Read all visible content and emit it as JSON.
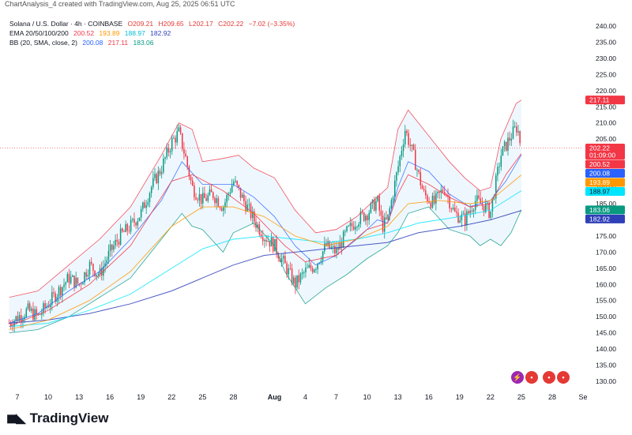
{
  "header": {
    "caption": "ChartAnalysis_4 created with TradingView.com, Aug 25, 2025 06:51 UTC"
  },
  "legend": {
    "symbol": "Solana / U.S. Dollar · 4h · COINBASE",
    "ohlc": {
      "o": "O209.21",
      "h": "H209.65",
      "l": "L202.17",
      "c": "C202.22",
      "chg": "−7.02 (−3.35%)"
    },
    "ema_label": "EMA 20/50/100/200",
    "ema_values": [
      "200.52",
      "193.89",
      "188.97",
      "182.92"
    ],
    "bb_label": "BB (20, SMA, close, 2)",
    "bb_values": [
      "200.08",
      "217.11",
      "183.06"
    ]
  },
  "footer": {
    "logo_text": "TradingView"
  },
  "colors": {
    "up": "#089981",
    "down": "#f23645",
    "ema20": "#f23645",
    "ema50": "#ff9800",
    "ema100": "#00e5ff",
    "ema200": "#2e3fb8",
    "bb_basis": "#2962ff",
    "bb_upper": "#f23645",
    "bb_lower": "#089981",
    "bb_fill": "#e3f2fd"
  },
  "chart_data": {
    "type": "candlestick",
    "title": "Solana / U.S. Dollar · 4h · COINBASE",
    "y_range": [
      128,
      243
    ],
    "y_ticks": [
      "240.00",
      "235.00",
      "230.00",
      "225.00",
      "220.00",
      "215.00",
      "210.00",
      "205.00",
      "200.00",
      "195.00",
      "190.00",
      "185.00",
      "180.00",
      "175.00",
      "170.00",
      "165.00",
      "160.00",
      "155.00",
      "150.00",
      "145.00",
      "140.00",
      "135.00",
      "130.00"
    ],
    "y_tick_values": [
      240,
      235,
      230,
      225,
      220,
      215,
      210,
      205,
      200,
      195,
      190,
      185,
      180,
      175,
      170,
      165,
      160,
      155,
      150,
      145,
      140,
      135,
      130
    ],
    "x_ticks": [
      "7",
      "10",
      "13",
      "16",
      "19",
      "22",
      "25",
      "28",
      "Aug",
      "4",
      "7",
      "10",
      "13",
      "16",
      "19",
      "22",
      "25",
      "28",
      "Se"
    ],
    "x_tick_days": [
      7,
      10,
      13,
      16,
      19,
      22,
      25,
      28,
      32,
      35,
      38,
      41,
      44,
      47,
      50,
      53,
      56,
      59,
      62
    ],
    "price_labels": [
      {
        "value": 217.11,
        "text": "217.11",
        "color": "#f23645"
      },
      {
        "value": 202.22,
        "text": "202.22",
        "sub": "01:09:00",
        "color": "#f23645"
      },
      {
        "value": 200.52,
        "text": "200.52",
        "color": "#f23645"
      },
      {
        "value": 200.08,
        "text": "200.08",
        "color": "#2962ff"
      },
      {
        "value": 193.89,
        "text": "193.89",
        "color": "#ff9800"
      },
      {
        "value": 188.97,
        "text": "188.97",
        "color": "#00e5ff"
      },
      {
        "value": 183.06,
        "text": "183.06",
        "color": "#089981"
      },
      {
        "value": 182.92,
        "text": "182.92",
        "color": "#2e3fb8"
      }
    ],
    "current_price": 202.22,
    "start_day": 6.2,
    "bars_per_day": 6,
    "close_path": [
      [
        6.2,
        148
      ],
      [
        8,
        152
      ],
      [
        9,
        150
      ],
      [
        11,
        158
      ],
      [
        12,
        162
      ],
      [
        13,
        160
      ],
      [
        14,
        166
      ],
      [
        15,
        163
      ],
      [
        16,
        170
      ],
      [
        17,
        175
      ],
      [
        18,
        178
      ],
      [
        19,
        182
      ],
      [
        20,
        190
      ],
      [
        21,
        196
      ],
      [
        22,
        204
      ],
      [
        22.7,
        207
      ],
      [
        23.3,
        200
      ],
      [
        24,
        190
      ],
      [
        25,
        186
      ],
      [
        26,
        188
      ],
      [
        27,
        184
      ],
      [
        28,
        192
      ],
      [
        29,
        186
      ],
      [
        30,
        180
      ],
      [
        31,
        175
      ],
      [
        32,
        172
      ],
      [
        33,
        166
      ],
      [
        34,
        160
      ],
      [
        35,
        164
      ],
      [
        36,
        166
      ],
      [
        37,
        172
      ],
      [
        38,
        170
      ],
      [
        39,
        176
      ],
      [
        40,
        180
      ],
      [
        41,
        182
      ],
      [
        42,
        186
      ],
      [
        42.5,
        178
      ],
      [
        43,
        180
      ],
      [
        44,
        196
      ],
      [
        44.7,
        208
      ],
      [
        45.5,
        200
      ],
      [
        46.5,
        188
      ],
      [
        47.5,
        185
      ],
      [
        48.5,
        190
      ],
      [
        49.5,
        182
      ],
      [
        50.5,
        180
      ],
      [
        51.5,
        186
      ],
      [
        52.5,
        184
      ],
      [
        53,
        182
      ],
      [
        54,
        200
      ],
      [
        55,
        206
      ],
      [
        55.6,
        209
      ],
      [
        56,
        202
      ]
    ],
    "ema20": [
      [
        6.2,
        147
      ],
      [
        10,
        152
      ],
      [
        14,
        160
      ],
      [
        18,
        172
      ],
      [
        22,
        192
      ],
      [
        24,
        194
      ],
      [
        27,
        189
      ],
      [
        30,
        182
      ],
      [
        33,
        172
      ],
      [
        35,
        167
      ],
      [
        38,
        169
      ],
      [
        41,
        177
      ],
      [
        43,
        179
      ],
      [
        44,
        188
      ],
      [
        45,
        194
      ],
      [
        47,
        191
      ],
      [
        49,
        187
      ],
      [
        51,
        184
      ],
      [
        53,
        185
      ],
      [
        54.5,
        194
      ],
      [
        56,
        200.5
      ]
    ],
    "ema50": [
      [
        6.2,
        146
      ],
      [
        10,
        149
      ],
      [
        14,
        155
      ],
      [
        18,
        164
      ],
      [
        22,
        178
      ],
      [
        25,
        184
      ],
      [
        28,
        184
      ],
      [
        31,
        181
      ],
      [
        34,
        175
      ],
      [
        37,
        172
      ],
      [
        40,
        174
      ],
      [
        43,
        178
      ],
      [
        45,
        185
      ],
      [
        48,
        186
      ],
      [
        51,
        185
      ],
      [
        53,
        186
      ],
      [
        56,
        193.9
      ]
    ],
    "ema100": [
      [
        6.2,
        147
      ],
      [
        10,
        148
      ],
      [
        14,
        152
      ],
      [
        18,
        157
      ],
      [
        22,
        165
      ],
      [
        25,
        171
      ],
      [
        28,
        174
      ],
      [
        31,
        175
      ],
      [
        34,
        174
      ],
      [
        37,
        173
      ],
      [
        40,
        174
      ],
      [
        43,
        176
      ],
      [
        46,
        179
      ],
      [
        50,
        181
      ],
      [
        53,
        183
      ],
      [
        56,
        189
      ]
    ],
    "ema200": [
      [
        6.2,
        148
      ],
      [
        10,
        149
      ],
      [
        14,
        151
      ],
      [
        18,
        154
      ],
      [
        22,
        158
      ],
      [
        25,
        162
      ],
      [
        28,
        166
      ],
      [
        31,
        169
      ],
      [
        34,
        170
      ],
      [
        37,
        171
      ],
      [
        40,
        172
      ],
      [
        43,
        173
      ],
      [
        46,
        176
      ],
      [
        50,
        178
      ],
      [
        53,
        180
      ],
      [
        56,
        182.9
      ]
    ],
    "bb_basis": [
      [
        6.2,
        148
      ],
      [
        9,
        151
      ],
      [
        12,
        158
      ],
      [
        15,
        164
      ],
      [
        18,
        174
      ],
      [
        21,
        186
      ],
      [
        23,
        198
      ],
      [
        25,
        191
      ],
      [
        28,
        191
      ],
      [
        30,
        187
      ],
      [
        32,
        181
      ],
      [
        34,
        172
      ],
      [
        36,
        166
      ],
      [
        38,
        169
      ],
      [
        40,
        174
      ],
      [
        42,
        180
      ],
      [
        43,
        179
      ],
      [
        44,
        190
      ],
      [
        45,
        198
      ],
      [
        47,
        195
      ],
      [
        49,
        188
      ],
      [
        51,
        184
      ],
      [
        53,
        186
      ],
      [
        54.5,
        192
      ],
      [
        56,
        200.1
      ]
    ],
    "bb_upper": [
      [
        6.2,
        156
      ],
      [
        9,
        158
      ],
      [
        12,
        166
      ],
      [
        15,
        174
      ],
      [
        18,
        184
      ],
      [
        21,
        200
      ],
      [
        22.7,
        210
      ],
      [
        24,
        208
      ],
      [
        25,
        198
      ],
      [
        27,
        199
      ],
      [
        28.5,
        200
      ],
      [
        30,
        196
      ],
      [
        32,
        193
      ],
      [
        34,
        183
      ],
      [
        36,
        176
      ],
      [
        38,
        177
      ],
      [
        40,
        181
      ],
      [
        42,
        187
      ],
      [
        43,
        190
      ],
      [
        44,
        208
      ],
      [
        45,
        214
      ],
      [
        46,
        210
      ],
      [
        47.5,
        204
      ],
      [
        49,
        198
      ],
      [
        50.5,
        193
      ],
      [
        52,
        189
      ],
      [
        53,
        190
      ],
      [
        54,
        205
      ],
      [
        55.5,
        216
      ],
      [
        56,
        217.1
      ]
    ],
    "bb_lower": [
      [
        6.2,
        145
      ],
      [
        9,
        146
      ],
      [
        12,
        150
      ],
      [
        15,
        156
      ],
      [
        18,
        162
      ],
      [
        20,
        170
      ],
      [
        21,
        174
      ],
      [
        23,
        182
      ],
      [
        24,
        178
      ],
      [
        25,
        177
      ],
      [
        27,
        170
      ],
      [
        28,
        176
      ],
      [
        30,
        179
      ],
      [
        32,
        172
      ],
      [
        33,
        164
      ],
      [
        35,
        154
      ],
      [
        37,
        159
      ],
      [
        39,
        163
      ],
      [
        41,
        168
      ],
      [
        43,
        172
      ],
      [
        44,
        176
      ],
      [
        45,
        182
      ],
      [
        47,
        184
      ],
      [
        49,
        177
      ],
      [
        51,
        175
      ],
      [
        52,
        172
      ],
      [
        53,
        174
      ],
      [
        54,
        172
      ],
      [
        55,
        176
      ],
      [
        56,
        183.1
      ]
    ]
  }
}
